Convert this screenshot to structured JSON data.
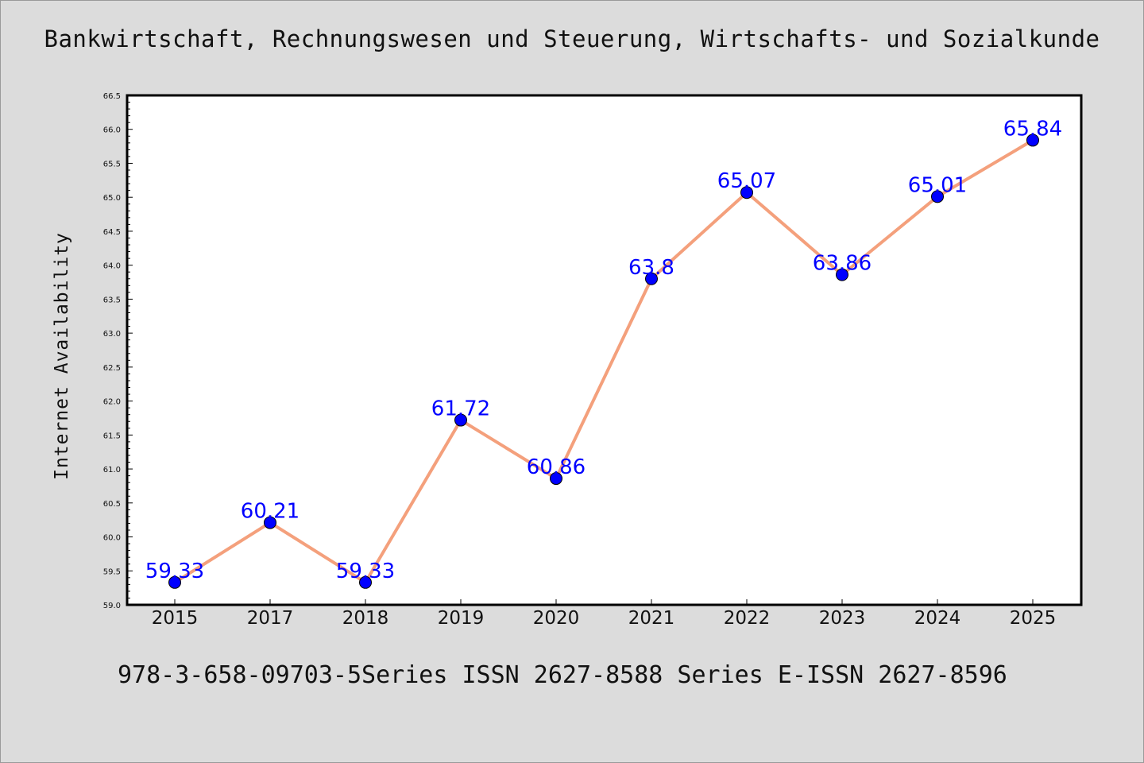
{
  "title": "Bankwirtschaft, Rechnungswesen und Steuerung, Wirtschafts- und Sozialkunde",
  "footer": "978-3-658-09703-5Series ISSN 2627-8588 Series E-ISSN 2627-8596",
  "colors": {
    "background": "#dcdcdc",
    "plot_background": "#ffffff",
    "line": "#f4a07c",
    "marker": "#0000ff",
    "label": "#0000ff"
  },
  "chart_data": {
    "type": "line",
    "title": "Bankwirtschaft, Rechnungswesen und Steuerung, Wirtschafts- und Sozialkunde",
    "xlabel": "",
    "ylabel": "Internet Availability",
    "categories": [
      "2015",
      "2017",
      "2018",
      "2019",
      "2020",
      "2021",
      "2022",
      "2023",
      "2024",
      "2025"
    ],
    "values": [
      59.33,
      60.21,
      59.33,
      61.72,
      60.86,
      63.8,
      65.07,
      63.86,
      65.01,
      65.84
    ],
    "value_labels": [
      "59.33",
      "60.21",
      "59.33",
      "61.72",
      "60.86",
      "63.8",
      "65.07",
      "63.86",
      "65.01",
      "65.84"
    ],
    "ylim": [
      59.0,
      66.5
    ],
    "yticks": [
      "59.0",
      "59.5",
      "60.0",
      "60.5",
      "61.0",
      "61.5",
      "62.0",
      "62.5",
      "63.0",
      "63.5",
      "64.0",
      "64.5",
      "65.0",
      "65.5",
      "66.0",
      "66.5"
    ],
    "grid": false,
    "legend": "none",
    "marker": "circle"
  }
}
